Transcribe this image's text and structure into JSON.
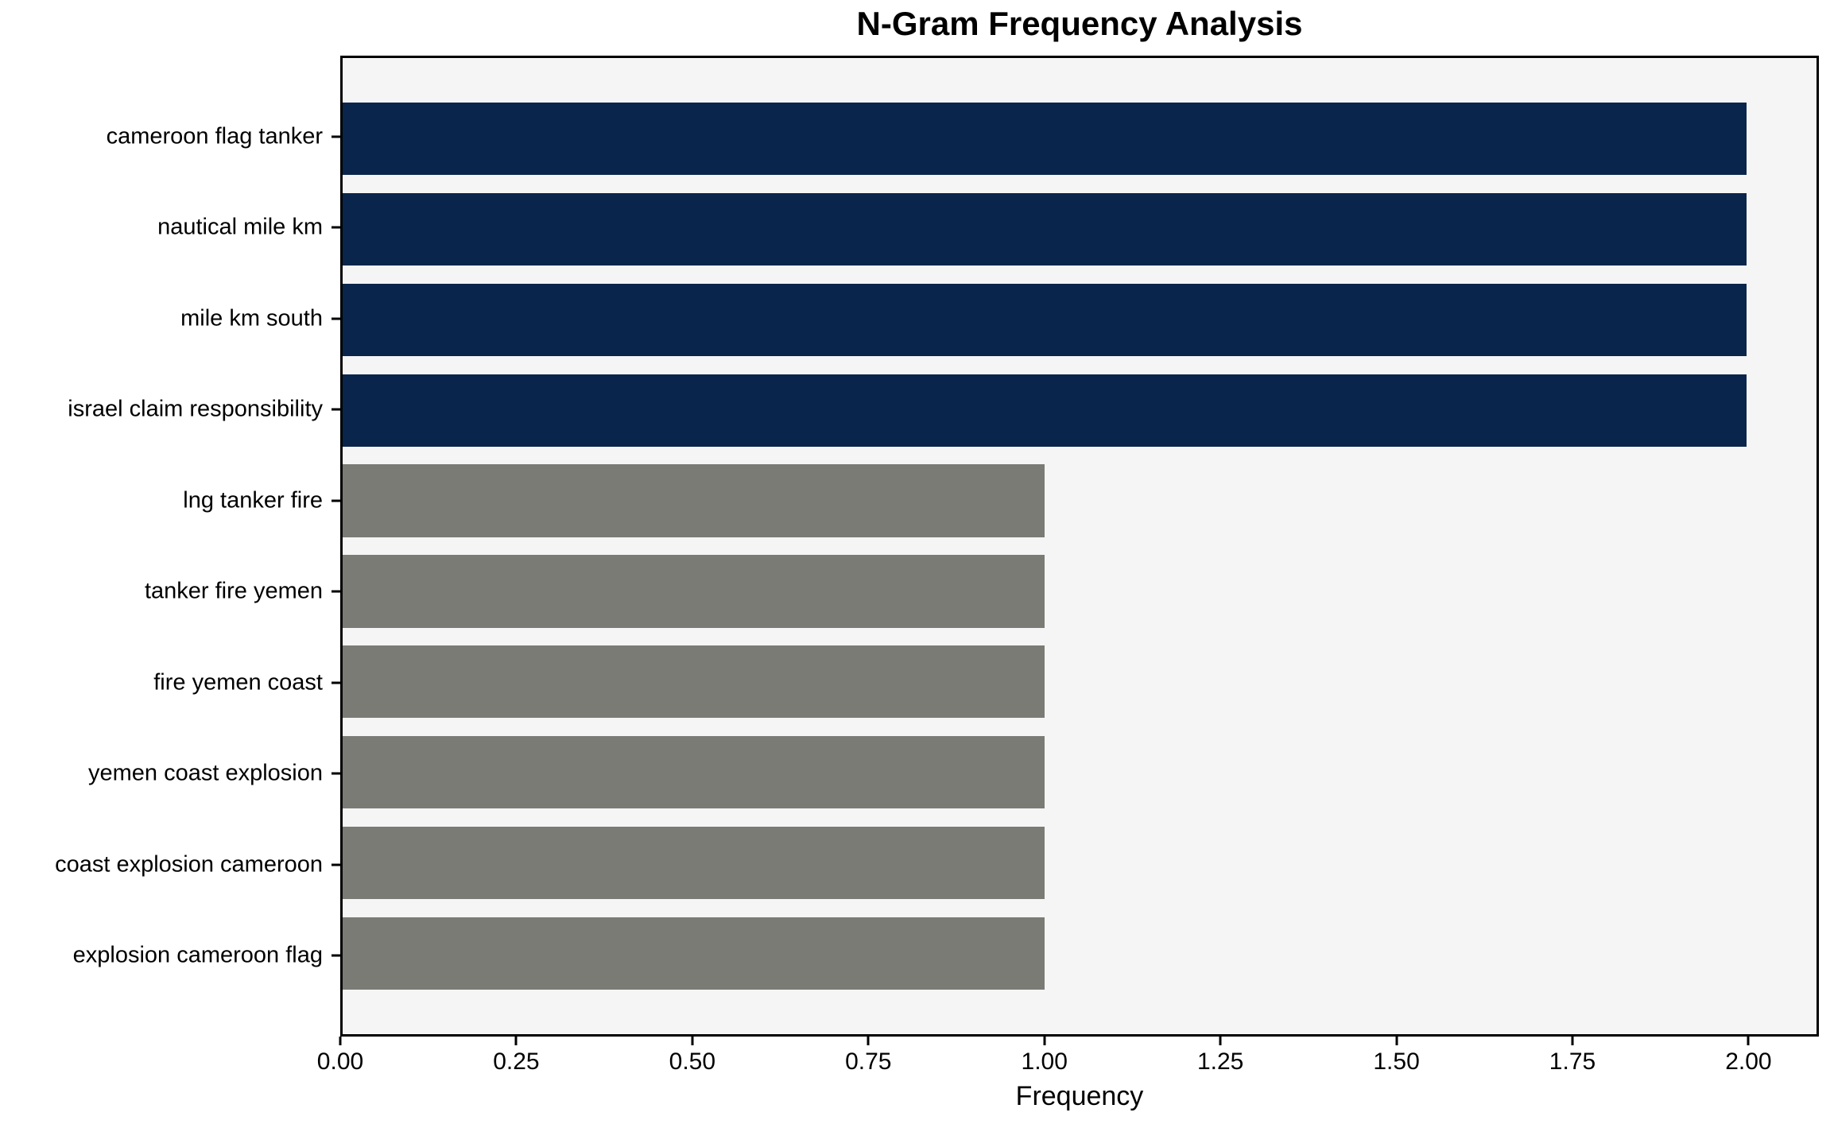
{
  "chart_data": {
    "type": "bar",
    "orientation": "horizontal",
    "title": "N-Gram Frequency Analysis",
    "xlabel": "Frequency",
    "ylabel": "",
    "categories": [
      "cameroon flag tanker",
      "nautical mile km",
      "mile km south",
      "israel claim responsibility",
      "lng tanker fire",
      "tanker fire yemen",
      "fire yemen coast",
      "yemen coast explosion",
      "coast explosion cameroon",
      "explosion cameroon flag"
    ],
    "values": [
      2,
      2,
      2,
      2,
      1,
      1,
      1,
      1,
      1,
      1
    ],
    "bar_colors": [
      "#0a254b",
      "#0a254b",
      "#0a254b",
      "#0a254b",
      "#7b7b76",
      "#7b7b76",
      "#7b7b76",
      "#7b7b76",
      "#7b7b76",
      "#7b7b76"
    ],
    "xlim": [
      0,
      2.1
    ],
    "xticks": [
      0,
      0.25,
      0.5,
      0.75,
      1.0,
      1.25,
      1.5,
      1.75,
      2.0
    ],
    "xtick_labels": [
      "0.00",
      "0.25",
      "0.50",
      "0.75",
      "1.00",
      "1.25",
      "1.50",
      "1.75",
      "2.00"
    ],
    "grid": false,
    "legend": null,
    "colors": {
      "highlight": "#0a254b",
      "base": "#7b7b76",
      "plot_background": "#f5f5f5",
      "figure_background": "#ffffff",
      "spine": "#000000"
    }
  }
}
